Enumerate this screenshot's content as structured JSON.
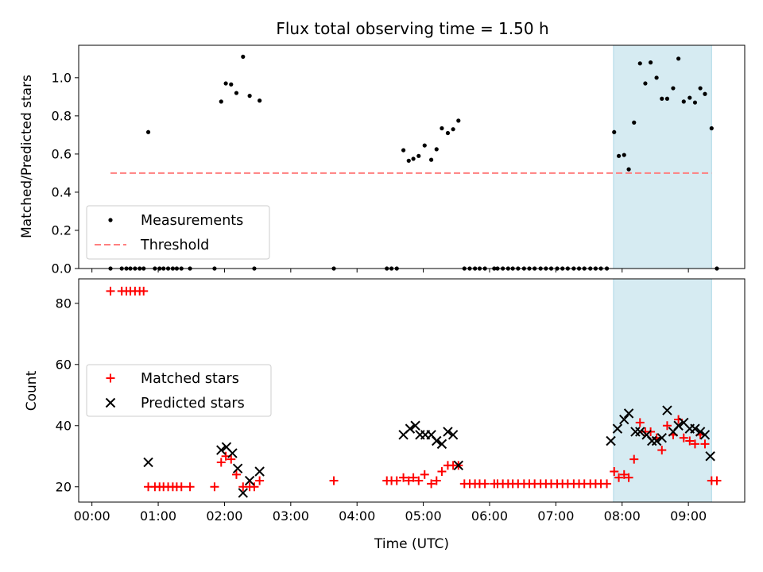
{
  "chart_data": [
    {
      "type": "scatter",
      "title": "Flux total observing time = 1.50 h",
      "ylabel": "Matched/Predicted stars",
      "xlabel": "",
      "xlim": [
        -0.2,
        9.85
      ],
      "ylim": [
        0,
        1.17
      ],
      "yticks": [
        0.0,
        0.2,
        0.4,
        0.6,
        0.8,
        1.0
      ],
      "ytick_labels": [
        "0.0",
        "0.2",
        "0.4",
        "0.6",
        "0.8",
        "1.0"
      ],
      "grid": false,
      "legend_position": "lower-left",
      "highlight_span": [
        7.87,
        9.35
      ],
      "highlight_color": "#add8e6",
      "series": [
        {
          "name": "Measurements",
          "kind": "scatter",
          "marker": "dot",
          "color": "#000000",
          "x": [
            0.28,
            0.45,
            0.52,
            0.58,
            0.65,
            0.72,
            0.78,
            0.85,
            0.95,
            1.02,
            1.08,
            1.15,
            1.22,
            1.28,
            1.35,
            1.48,
            1.85,
            1.95,
            2.02,
            2.1,
            2.18,
            2.28,
            2.38,
            2.45,
            2.53,
            3.65,
            4.45,
            4.52,
            4.6,
            4.7,
            4.78,
            4.85,
            4.93,
            5.02,
            5.12,
            5.2,
            5.28,
            5.37,
            5.45,
            5.53,
            5.62,
            5.7,
            5.78,
            5.85,
            5.93,
            6.07,
            6.12,
            6.2,
            6.28,
            6.35,
            6.43,
            6.52,
            6.6,
            6.68,
            6.77,
            6.85,
            6.93,
            7.02,
            7.1,
            7.18,
            7.27,
            7.35,
            7.43,
            7.52,
            7.6,
            7.68,
            7.77,
            7.88,
            7.95,
            8.03,
            8.1,
            8.18,
            8.27,
            8.35,
            8.43,
            8.52,
            8.6,
            8.68,
            8.77,
            8.85,
            8.93,
            9.02,
            9.1,
            9.18,
            9.25,
            9.35,
            9.43
          ],
          "y": [
            0,
            0,
            0,
            0,
            0,
            0,
            0,
            0.715,
            0,
            0,
            0,
            0,
            0,
            0,
            0,
            0,
            0,
            0.875,
            0.97,
            0.965,
            0.92,
            1.11,
            0.905,
            0,
            0.88,
            0,
            0,
            0,
            0,
            0.62,
            0.565,
            0.575,
            0.59,
            0.645,
            0.57,
            0.625,
            0.735,
            0.71,
            0.73,
            0.775,
            0,
            0,
            0,
            0,
            0,
            0,
            0,
            0,
            0,
            0,
            0,
            0,
            0,
            0,
            0,
            0,
            0,
            0,
            0,
            0,
            0,
            0,
            0,
            0,
            0,
            0,
            0,
            0.715,
            0.59,
            0.595,
            0.52,
            0.765,
            1.075,
            0.97,
            1.08,
            1.0,
            0.89,
            0.89,
            0.945,
            1.1,
            0.875,
            0.895,
            0.87,
            0.945,
            0.915,
            0.735,
            0
          ]
        },
        {
          "name": "Threshold",
          "kind": "line",
          "style": "dashed",
          "color": "#ff7f7f",
          "x": [
            0.28,
            9.35
          ],
          "y": [
            0.5,
            0.5
          ]
        }
      ]
    },
    {
      "type": "scatter",
      "title": "",
      "ylabel": "Count",
      "xlabel": "Time (UTC)",
      "xlim": [
        -0.2,
        9.85
      ],
      "ylim": [
        15,
        88
      ],
      "xticks": [
        0,
        1,
        2,
        3,
        4,
        5,
        6,
        7,
        8,
        9
      ],
      "xtick_labels": [
        "00:00",
        "01:00",
        "02:00",
        "03:00",
        "04:00",
        "05:00",
        "06:00",
        "07:00",
        "08:00",
        "09:00"
      ],
      "yticks": [
        20,
        40,
        60,
        80
      ],
      "ytick_labels": [
        "20",
        "40",
        "60",
        "80"
      ],
      "grid": false,
      "legend_position": "center-left",
      "highlight_span": [
        7.87,
        9.35
      ],
      "highlight_color": "#add8e6",
      "series": [
        {
          "name": "Matched stars",
          "kind": "scatter",
          "marker": "plus",
          "color": "#ff0000",
          "x": [
            0.28,
            0.45,
            0.52,
            0.58,
            0.65,
            0.72,
            0.78,
            0.85,
            0.95,
            1.02,
            1.08,
            1.15,
            1.22,
            1.28,
            1.35,
            1.48,
            1.85,
            1.95,
            2.02,
            2.1,
            2.18,
            2.28,
            2.38,
            2.45,
            2.53,
            3.65,
            4.45,
            4.52,
            4.6,
            4.7,
            4.78,
            4.85,
            4.93,
            5.02,
            5.12,
            5.2,
            5.28,
            5.37,
            5.45,
            5.53,
            5.62,
            5.7,
            5.78,
            5.85,
            5.93,
            6.07,
            6.12,
            6.2,
            6.28,
            6.35,
            6.43,
            6.52,
            6.6,
            6.68,
            6.77,
            6.85,
            6.93,
            7.02,
            7.1,
            7.18,
            7.27,
            7.35,
            7.43,
            7.52,
            7.6,
            7.68,
            7.77,
            7.88,
            7.95,
            8.03,
            8.1,
            8.18,
            8.27,
            8.35,
            8.43,
            8.52,
            8.6,
            8.68,
            8.77,
            8.85,
            8.93,
            9.02,
            9.1,
            9.18,
            9.25,
            9.35,
            9.43
          ],
          "y": [
            84,
            84,
            84,
            84,
            84,
            84,
            84,
            20,
            20,
            20,
            20,
            20,
            20,
            20,
            20,
            20,
            20,
            28,
            30,
            29,
            24,
            20,
            20,
            20,
            22,
            22,
            22,
            22,
            22,
            23,
            22,
            23,
            22,
            24,
            21,
            22,
            25,
            27,
            27,
            27,
            21,
            21,
            21,
            21,
            21,
            21,
            21,
            21,
            21,
            21,
            21,
            21,
            21,
            21,
            21,
            21,
            21,
            21,
            21,
            21,
            21,
            21,
            21,
            21,
            21,
            21,
            21,
            25,
            23,
            24,
            23,
            29,
            41,
            38,
            38,
            36,
            32,
            40,
            37,
            42,
            36,
            35,
            34,
            37,
            34,
            22,
            22
          ]
        },
        {
          "name": "Predicted stars",
          "kind": "scatter",
          "marker": "x",
          "color": "#000000",
          "x": [
            0.85,
            1.95,
            2.03,
            2.12,
            2.2,
            2.28,
            2.38,
            2.53,
            4.7,
            4.8,
            4.88,
            4.95,
            5.03,
            5.12,
            5.2,
            5.28,
            5.37,
            5.45,
            5.53,
            7.83,
            7.93,
            8.03,
            8.1,
            8.2,
            8.27,
            8.37,
            8.45,
            8.52,
            8.6,
            8.68,
            8.77,
            8.85,
            8.93,
            9.02,
            9.1,
            9.18,
            9.25,
            9.33
          ],
          "y": [
            28,
            32,
            33,
            31,
            26,
            18,
            22,
            25,
            37,
            39,
            40,
            37,
            37,
            37,
            35,
            34,
            38,
            37,
            27,
            35,
            39,
            42,
            44,
            38,
            38,
            37,
            35,
            35,
            36,
            45,
            38,
            40,
            41,
            39,
            39,
            38,
            37,
            30
          ]
        }
      ]
    }
  ]
}
